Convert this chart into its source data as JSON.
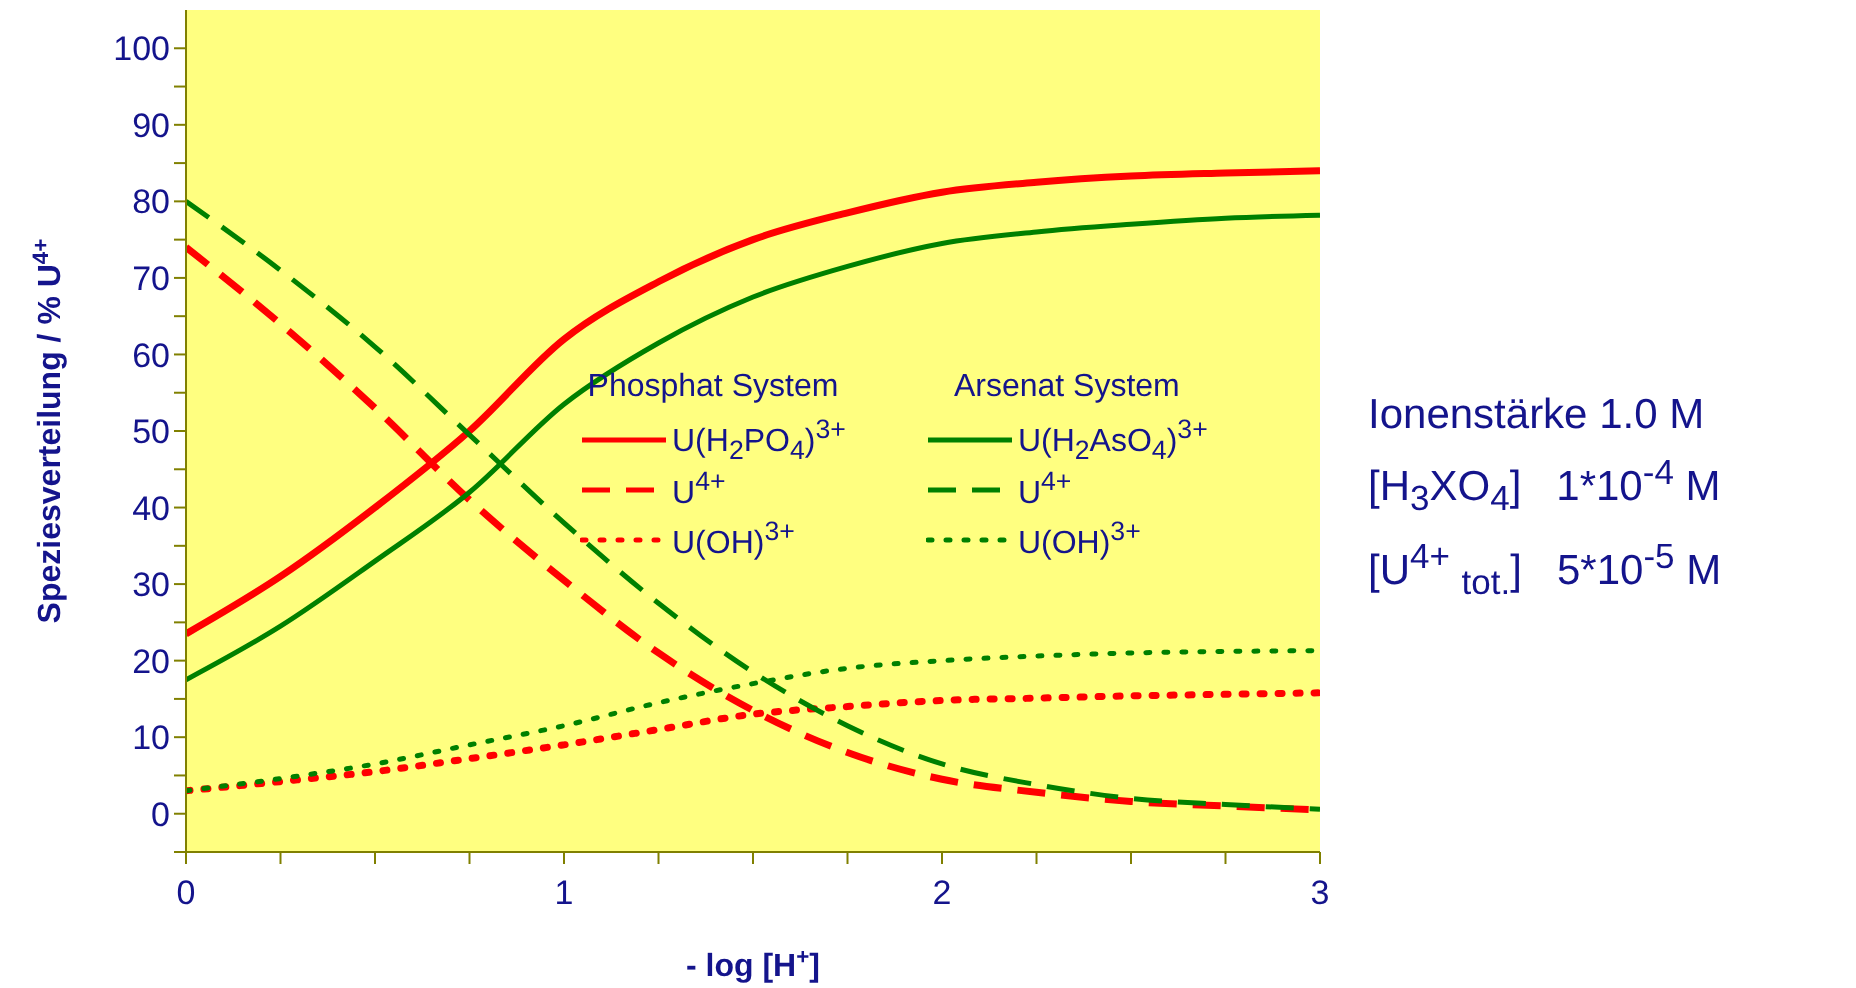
{
  "chart_data": {
    "type": "line",
    "xlabel": "- log [H$^{+}$]",
    "ylabel": "Speziesverteilung / % U$^{4+}$",
    "x": [
      0,
      0.25,
      0.5,
      0.75,
      1,
      1.25,
      1.5,
      1.75,
      2,
      2.25,
      2.5,
      2.75,
      3
    ],
    "xlim": [
      0,
      3
    ],
    "xticks": [
      0,
      {
        "value": 0.25,
        "label": null
      },
      {
        "value": 0.5,
        "label": null
      },
      {
        "value": 0.75,
        "label": null
      },
      1,
      {
        "value": 1.25,
        "label": null
      },
      {
        "value": 1.5,
        "label": null
      },
      {
        "value": 1.75,
        "label": null
      },
      2,
      {
        "value": 2.25,
        "label": null
      },
      {
        "value": 2.5,
        "label": null
      },
      {
        "value": 2.75,
        "label": null
      },
      3
    ],
    "ylim": [
      -5,
      105
    ],
    "yticks": [
      {
        "value": -5,
        "label": null
      },
      0,
      {
        "value": 5,
        "label": null
      },
      10,
      {
        "value": 15,
        "label": null
      },
      20,
      {
        "value": 25,
        "label": null
      },
      30,
      {
        "value": 35,
        "label": null
      },
      40,
      {
        "value": 45,
        "label": null
      },
      50,
      {
        "value": 55,
        "label": null
      },
      60,
      {
        "value": 65,
        "label": null
      },
      70,
      {
        "value": 75,
        "label": null
      },
      80,
      {
        "value": 85,
        "label": null
      },
      90,
      {
        "value": 95,
        "label": null
      },
      100
    ],
    "series": [
      {
        "name": "U(H$_{2}$PO$_{4}$)$^{3+}$",
        "color": "#ff0000",
        "line_style": "solid",
        "values": [
          23.5,
          31,
          40,
          50,
          62,
          69.5,
          75,
          78.5,
          81.2,
          82.5,
          83.3,
          83.7,
          84
        ]
      },
      {
        "name": "U$^{4+}$",
        "color": "#ff0000",
        "line_style": "dashed",
        "values": [
          74,
          64,
          53,
          41,
          30.5,
          21,
          13.5,
          8,
          4.5,
          2.8,
          1.6,
          1,
          0.5
        ]
      },
      {
        "name": "U(OH)$^{3+}$",
        "color": "#ff0000",
        "line_style": "dotted",
        "values": [
          3,
          4.2,
          5.5,
          7.2,
          9,
          11,
          13,
          14,
          14.8,
          15.1,
          15.4,
          15.6,
          15.8
        ]
      },
      {
        "name": "U(H$_{2}$AsO$_{4}$)$^{3+}$",
        "color": "#008000",
        "line_style": "solid",
        "values": [
          17.5,
          24.5,
          33,
          42,
          53.5,
          61.5,
          67.5,
          71.5,
          74.5,
          76,
          77,
          77.8,
          78.2
        ]
      },
      {
        "name": "U$^{4+}$",
        "color": "#008000",
        "line_style": "dashed",
        "values": [
          80,
          71,
          61,
          49.5,
          38,
          27.5,
          18.5,
          11.5,
          6.5,
          3.8,
          2,
          1.2,
          0.6
        ]
      },
      {
        "name": "U(OH)$^{3+}$",
        "color": "#008000",
        "line_style": "dotted",
        "values": [
          3,
          4.6,
          6.5,
          9,
          11.5,
          14.5,
          17,
          19,
          20,
          20.6,
          21,
          21.2,
          21.3
        ]
      }
    ],
    "marker": "none",
    "legend": "right",
    "grid": false,
    "annotations": [
      "Phosphat System",
      "Arsenat System",
      "Ionenstärke 1.0 M",
      "[H$_{3}$XO$_{4}$]   1*10$^{-4}$ M",
      "[U$^{4+}$ $_{tot.}$]   5*10$^{-5}$ M"
    ]
  }
}
